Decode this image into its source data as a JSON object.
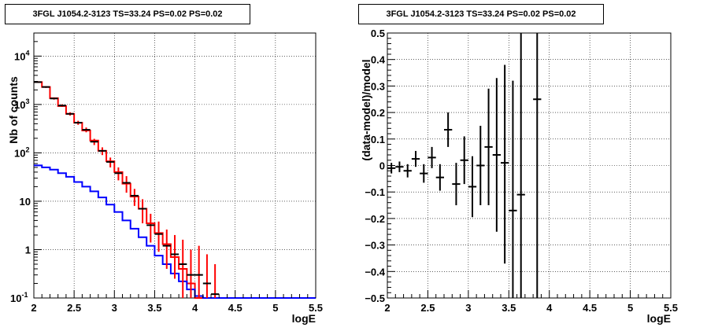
{
  "chart_data": [
    {
      "type": "step-line-with-errorbars",
      "title": "3FGL J1054.2-3123 TS=33.24 PS=0.02 PS=0.02",
      "xlabel": "logE",
      "ylabel": "Nb of counts",
      "xlim": [
        2,
        5.5
      ],
      "ylim": [
        0.1,
        30000
      ],
      "yscale": "log",
      "grid": true,
      "x_ticks": [
        "2",
        "2.5",
        "3",
        "3.5",
        "4",
        "4.5",
        "5",
        "5.5"
      ],
      "y_ticks": [
        "10^-1",
        "1",
        "10",
        "10^2",
        "10^3",
        "10^4"
      ],
      "bin_edges": [
        2.0,
        2.1,
        2.2,
        2.3,
        2.4,
        2.5,
        2.6,
        2.7,
        2.8,
        2.9,
        3.0,
        3.1,
        3.2,
        3.3,
        3.4,
        3.5,
        3.6,
        3.7,
        3.8,
        3.9,
        4.0,
        4.1,
        4.2,
        4.3,
        4.4,
        4.5,
        4.6,
        4.7,
        4.8,
        4.9,
        5.0,
        5.1,
        5.2,
        5.3,
        5.4,
        5.5
      ],
      "series": [
        {
          "role": "total-model",
          "color": "#ff0000",
          "values": [
            2900,
            2300,
            1350,
            930,
            640,
            420,
            290,
            180,
            110,
            67,
            40,
            23,
            12.5,
            7,
            3.5,
            2.2,
            1.3,
            0.7,
            0.4,
            0.2,
            0.1,
            0.1,
            0.1,
            0.1,
            0.1,
            0.1,
            0.1,
            0.1,
            0.1,
            0.1,
            0.1,
            0.1,
            0.1,
            0.1,
            0.1
          ]
        },
        {
          "role": "source-model",
          "color": "#0000ff",
          "values": [
            55,
            50,
            45,
            38,
            32,
            25,
            20,
            16,
            12,
            8.5,
            6,
            4,
            2.7,
            1.8,
            1.2,
            0.75,
            0.5,
            0.32,
            0.22,
            0.15,
            0.11,
            0.1,
            0.1,
            0.1,
            0.1,
            0.1,
            0.1,
            0.1,
            0.1,
            0.1,
            0.1,
            0.1,
            0.1,
            0.1,
            0.1
          ]
        }
      ],
      "data_points": {
        "color": "#000000",
        "error_color": "#ff0000",
        "x": [
          2.05,
          2.15,
          2.25,
          2.35,
          2.45,
          2.55,
          2.65,
          2.75,
          2.85,
          2.95,
          3.05,
          3.15,
          3.25,
          3.35,
          3.45,
          3.55,
          3.65,
          3.75,
          3.85,
          3.95,
          4.05,
          4.15,
          4.25
        ],
        "y": [
          2900,
          2300,
          1330,
          950,
          640,
          420,
          300,
          170,
          110,
          65,
          38,
          24,
          13,
          7,
          3.2,
          2.1,
          1.2,
          0.8,
          0.5,
          0.3,
          0.3,
          0.2,
          0.12
        ],
        "ylow": [
          2790,
          2200,
          1260,
          890,
          590,
          380,
          266,
          145,
          90,
          50,
          27,
          15,
          8,
          3.5,
          1.4,
          0.9,
          0.4,
          0.25,
          0.1,
          0.1,
          0.1,
          0.1,
          0.1
        ],
        "yhigh": [
          3010,
          2400,
          1400,
          1010,
          690,
          460,
          334,
          195,
          130,
          80,
          50,
          33,
          18,
          11,
          5.5,
          3.8,
          2.6,
          2.0,
          1.6,
          1.0,
          1.2,
          0.8,
          0.5
        ]
      }
    },
    {
      "type": "scatter-with-errorbars",
      "title": "3FGL J1054.2-3123 TS=33.24 PS=0.02 PS=0.02",
      "xlabel": "logE",
      "ylabel": "(data-model)/model",
      "xlim": [
        2,
        5.5
      ],
      "ylim": [
        -0.5,
        0.5
      ],
      "grid": true,
      "x_ticks": [
        "2",
        "2.5",
        "3",
        "3.5",
        "4",
        "4.5",
        "5",
        "5.5"
      ],
      "y_ticks": [
        "−0.5",
        "−0.4",
        "−0.3",
        "−0.2",
        "−0.1",
        "0",
        "0.1",
        "0.2",
        "0.3",
        "0.4",
        "0.5"
      ],
      "points": {
        "color": "#000000",
        "x": [
          2.05,
          2.15,
          2.25,
          2.35,
          2.45,
          2.55,
          2.65,
          2.75,
          2.85,
          2.95,
          3.05,
          3.15,
          3.25,
          3.35,
          3.45,
          3.55,
          3.65,
          3.85
        ],
        "y": [
          -0.01,
          -0.005,
          -0.02,
          0.025,
          -0.03,
          0.03,
          -0.045,
          0.135,
          -0.07,
          0.02,
          -0.08,
          0.0,
          0.07,
          0.04,
          0.01,
          -0.17,
          -0.11,
          0.25
        ],
        "ylow": [
          -0.03,
          -0.025,
          -0.045,
          -0.005,
          -0.065,
          -0.01,
          -0.095,
          0.07,
          -0.15,
          -0.07,
          -0.195,
          -0.15,
          -0.15,
          -0.25,
          -0.37,
          -0.5,
          -0.5,
          -0.5
        ],
        "yhigh": [
          0.01,
          0.015,
          0.005,
          0.055,
          0.005,
          0.07,
          0.005,
          0.2,
          0.01,
          0.11,
          0.035,
          0.15,
          0.29,
          0.33,
          0.38,
          0.32,
          0.5,
          0.5
        ]
      }
    }
  ]
}
